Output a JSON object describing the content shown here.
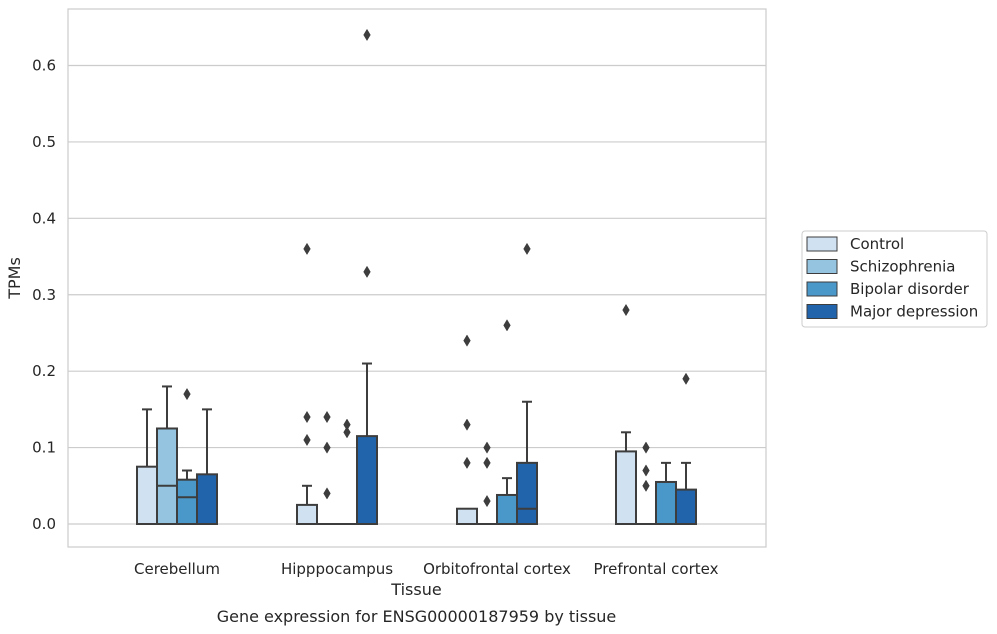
{
  "chart_data": {
    "type": "box",
    "title": "",
    "caption": "Gene expression for ENSG00000187959 by tissue",
    "xlabel": "Tissue",
    "ylabel": "TPMs",
    "ylim": [
      -0.032,
      0.675
    ],
    "yticks": [
      0.0,
      0.1,
      0.2,
      0.3,
      0.4,
      0.5,
      0.6
    ],
    "ytick_labels": [
      "0.0",
      "0.1",
      "0.2",
      "0.3",
      "0.4",
      "0.5",
      "0.6"
    ],
    "grid": "horizontal",
    "legend_position": "right",
    "categories": [
      "Cerebellum",
      "Hipppocampus",
      "Orbitofrontal cortex",
      "Prefrontal cortex"
    ],
    "series": [
      {
        "name": "Control",
        "color": "#d0e1f2",
        "boxes": [
          {
            "q1": 0.0,
            "median": 0.0,
            "q3": 0.075,
            "whislo": 0.0,
            "whishi": 0.15,
            "fliers": []
          },
          {
            "q1": 0.0,
            "median": 0.0,
            "q3": 0.025,
            "whislo": 0.0,
            "whishi": 0.05,
            "fliers": [
              0.36,
              0.14,
              0.11
            ]
          },
          {
            "q1": 0.0,
            "median": 0.0,
            "q3": 0.02,
            "whislo": 0.0,
            "whishi": 0.02,
            "fliers": [
              0.24,
              0.13,
              0.08
            ]
          },
          {
            "q1": 0.0,
            "median": 0.0,
            "q3": 0.095,
            "whislo": 0.0,
            "whishi": 0.12,
            "fliers": [
              0.28
            ]
          }
        ]
      },
      {
        "name": "Schizophrenia",
        "color": "#94c4df",
        "boxes": [
          {
            "q1": 0.0,
            "median": 0.05,
            "q3": 0.125,
            "whislo": 0.0,
            "whishi": 0.18,
            "fliers": []
          },
          {
            "q1": 0.0,
            "median": 0.0,
            "q3": 0.0,
            "whislo": 0.0,
            "whishi": 0.0,
            "fliers": [
              0.14,
              0.1,
              0.04
            ]
          },
          {
            "q1": 0.0,
            "median": 0.0,
            "q3": 0.0,
            "whislo": 0.0,
            "whishi": 0.0,
            "fliers": [
              0.1,
              0.08,
              0.03
            ]
          },
          {
            "q1": 0.0,
            "median": 0.0,
            "q3": 0.0,
            "whislo": 0.0,
            "whishi": 0.0,
            "fliers": [
              0.1,
              0.07,
              0.05
            ]
          }
        ]
      },
      {
        "name": "Bipolar disorder",
        "color": "#4a98c9",
        "boxes": [
          {
            "q1": 0.0,
            "median": 0.035,
            "q3": 0.058,
            "whislo": 0.0,
            "whishi": 0.07,
            "fliers": [
              0.17
            ]
          },
          {
            "q1": 0.0,
            "median": 0.0,
            "q3": 0.0,
            "whislo": 0.0,
            "whishi": 0.0,
            "fliers": [
              0.13,
              0.12
            ]
          },
          {
            "q1": 0.0,
            "median": 0.0,
            "q3": 0.038,
            "whislo": 0.0,
            "whishi": 0.06,
            "fliers": [
              0.26
            ]
          },
          {
            "q1": 0.0,
            "median": 0.0,
            "q3": 0.055,
            "whislo": 0.0,
            "whishi": 0.08,
            "fliers": []
          }
        ]
      },
      {
        "name": "Major depression",
        "color": "#2164ab",
        "boxes": [
          {
            "q1": 0.0,
            "median": 0.0,
            "q3": 0.065,
            "whislo": 0.0,
            "whishi": 0.15,
            "fliers": []
          },
          {
            "q1": 0.0,
            "median": 0.0,
            "q3": 0.115,
            "whislo": 0.0,
            "whishi": 0.21,
            "fliers": [
              0.64,
              0.33
            ]
          },
          {
            "q1": 0.0,
            "median": 0.02,
            "q3": 0.08,
            "whislo": 0.0,
            "whishi": 0.16,
            "fliers": [
              0.36
            ]
          },
          {
            "q1": 0.0,
            "median": 0.0,
            "q3": 0.045,
            "whislo": 0.0,
            "whishi": 0.08,
            "fliers": [
              0.19
            ]
          }
        ]
      }
    ]
  }
}
